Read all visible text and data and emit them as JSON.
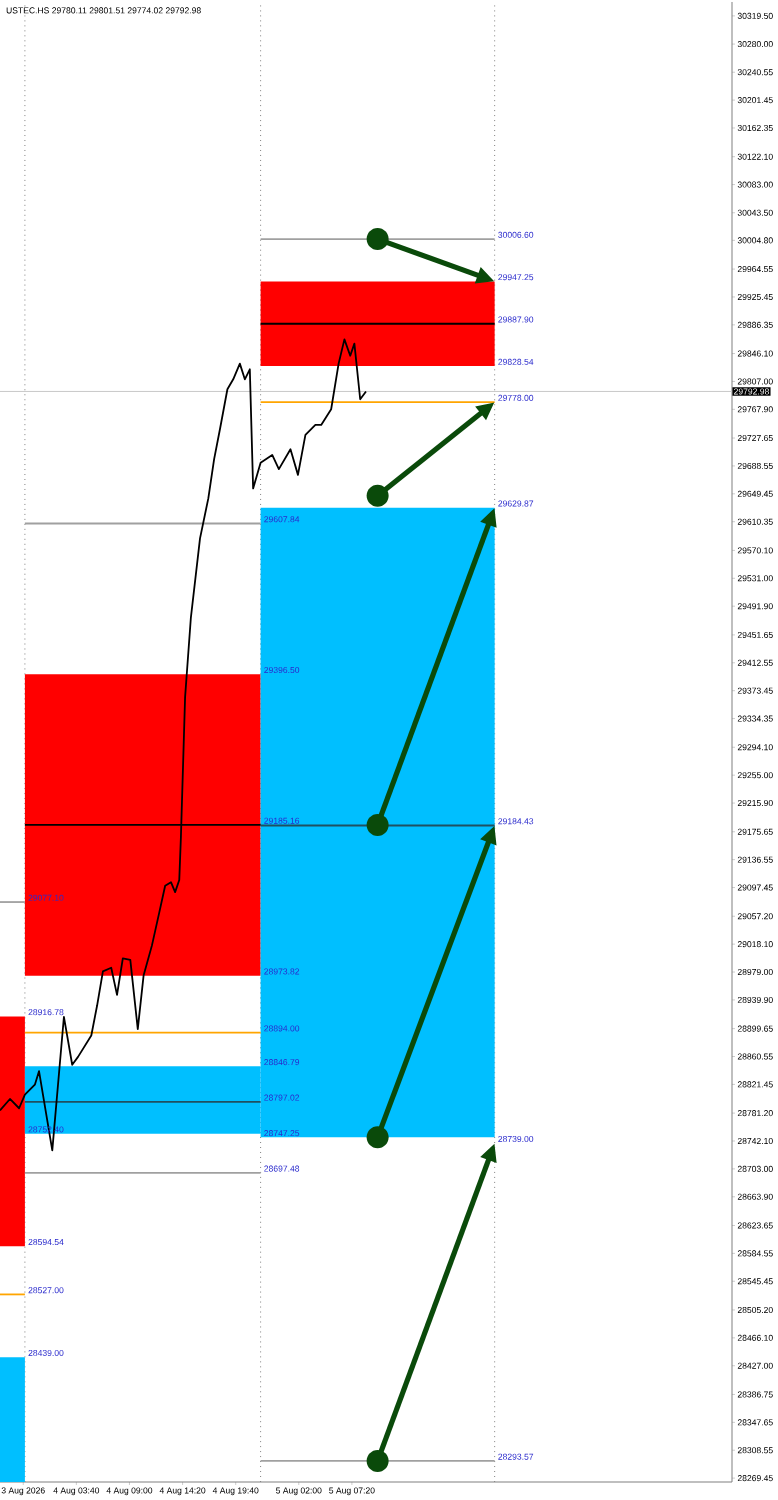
{
  "chart_data": {
    "type": "line",
    "title": "USTEC.HS  29780.11 29801.51 29774.02 29792.98",
    "xlim": [
      "2026-08-03T20:00",
      "2026-08-06T21:30"
    ],
    "ylim": [
      28264,
      30339
    ],
    "xticks": [
      {
        "value": "2026-08-03T22:20",
        "label": "3 Aug 2026"
      },
      {
        "value": "2026-08-04T03:40",
        "label": "4 Aug 03:40"
      },
      {
        "value": "2026-08-04T09:00",
        "label": "4 Aug 09:00"
      },
      {
        "value": "2026-08-04T14:20",
        "label": "4 Aug 14:20"
      },
      {
        "value": "2026-08-04T19:40",
        "label": "4 Aug 19:40"
      },
      {
        "value": "2026-08-05T02:00",
        "label": "5 Aug 02:00"
      },
      {
        "value": "2026-08-05T07:20",
        "label": "5 Aug 07:20"
      }
    ],
    "yticks": [
      {
        "value": 30319.5,
        "label": "30319.50"
      },
      {
        "value": 30280.0,
        "label": "30280.00"
      },
      {
        "value": 30240.55,
        "label": "30240.55"
      },
      {
        "value": 30201.45,
        "label": "30201.45"
      },
      {
        "value": 30162.35,
        "label": "30162.35"
      },
      {
        "value": 30122.1,
        "label": "30122.10"
      },
      {
        "value": 30083.0,
        "label": "30083.00"
      },
      {
        "value": 30043.5,
        "label": "30043.50"
      },
      {
        "value": 30004.8,
        "label": "30004.80"
      },
      {
        "value": 29964.55,
        "label": "29964.55"
      },
      {
        "value": 29925.45,
        "label": "29925.45"
      },
      {
        "value": 29886.35,
        "label": "29886.35"
      },
      {
        "value": 29846.1,
        "label": "29846.10"
      },
      {
        "value": 29807.0,
        "label": "29807.00"
      },
      {
        "value": 29767.9,
        "label": "29767.90"
      },
      {
        "value": 29727.65,
        "label": "29727.65"
      },
      {
        "value": 29688.55,
        "label": "29688.55"
      },
      {
        "value": 29649.45,
        "label": "29649.45"
      },
      {
        "value": 29610.35,
        "label": "29610.35"
      },
      {
        "value": 29570.1,
        "label": "29570.10"
      },
      {
        "value": 29531.0,
        "label": "29531.00"
      },
      {
        "value": 29491.9,
        "label": "29491.90"
      },
      {
        "value": 29451.65,
        "label": "29451.65"
      },
      {
        "value": 29412.55,
        "label": "29412.55"
      },
      {
        "value": 29373.45,
        "label": "29373.45"
      },
      {
        "value": 29334.35,
        "label": "29334.35"
      },
      {
        "value": 29294.1,
        "label": "29294.10"
      },
      {
        "value": 29255.0,
        "label": "29255.00"
      },
      {
        "value": 29215.9,
        "label": "29215.90"
      },
      {
        "value": 29175.65,
        "label": "29175.65"
      },
      {
        "value": 29136.55,
        "label": "29136.55"
      },
      {
        "value": 29097.45,
        "label": "29097.45"
      },
      {
        "value": 29057.2,
        "label": "29057.20"
      },
      {
        "value": 29018.1,
        "label": "29018.10"
      },
      {
        "value": 28979.0,
        "label": "28979.00"
      },
      {
        "value": 28939.9,
        "label": "28939.90"
      },
      {
        "value": 28899.65,
        "label": "28899.65"
      },
      {
        "value": 28860.55,
        "label": "28860.55"
      },
      {
        "value": 28821.45,
        "label": "28821.45"
      },
      {
        "value": 28781.2,
        "label": "28781.20"
      },
      {
        "value": 28742.1,
        "label": "28742.10"
      },
      {
        "value": 28703.0,
        "label": "28703.00"
      },
      {
        "value": 28663.9,
        "label": "28663.90"
      },
      {
        "value": 28623.65,
        "label": "28623.65"
      },
      {
        "value": 28584.55,
        "label": "28584.55"
      },
      {
        "value": 28545.45,
        "label": "28545.45"
      },
      {
        "value": 28505.2,
        "label": "28505.20"
      },
      {
        "value": 28466.1,
        "label": "28466.10"
      },
      {
        "value": 28427.0,
        "label": "28427.00"
      },
      {
        "value": 28386.75,
        "label": "28386.75"
      },
      {
        "value": 28347.65,
        "label": "28347.65"
      },
      {
        "value": 28308.55,
        "label": "28308.55"
      },
      {
        "value": 28269.45,
        "label": "28269.45"
      }
    ],
    "series": [
      {
        "type": "bar",
        "x": [
          "2026-08-03T21:15"
        ],
        "base": [
          28594.54
        ],
        "values": [
          322.24
        ],
        "color": "#ff0000"
      },
      {
        "type": "bar",
        "x": [
          "2026-08-03T21:15"
        ],
        "base": [
          28264
        ],
        "values": [
          175.0
        ],
        "color": "#00bfff"
      },
      {
        "type": "bar",
        "x": [
          "2026-08-04T10:05"
        ],
        "base": [
          28973.82
        ],
        "values": [
          422.68
        ],
        "color": "#ff0000"
      },
      {
        "type": "bar",
        "x": [
          "2026-08-04T10:05"
        ],
        "base": [
          28752.4
        ],
        "values": [
          94.39
        ],
        "color": "#00bfff"
      },
      {
        "type": "bar",
        "x": [
          "2026-08-05T10:10"
        ],
        "base": [
          29828.54
        ],
        "values": [
          118.71
        ],
        "color": "#ff0000"
      },
      {
        "type": "bar",
        "x": [
          "2026-08-05T10:10"
        ],
        "base": [
          28747.25
        ],
        "values": [
          882.62
        ],
        "color": "#00bfff"
      },
      {
        "type": "line",
        "color": "#a0a0a0",
        "x": [
          "2026-08-04T22:10",
          "2026-08-05T21:40"
        ],
        "values": [
          30006.6,
          30006.6
        ]
      },
      {
        "type": "line",
        "color": "#000000",
        "x": [
          "2026-08-04T22:10",
          "2026-08-05T21:40"
        ],
        "values": [
          29887.9,
          29887.9
        ]
      },
      {
        "type": "line",
        "color": "#ffa500",
        "x": [
          "2026-08-04T22:10",
          "2026-08-05T21:40"
        ],
        "values": [
          29778.0,
          29778.0
        ]
      },
      {
        "type": "line",
        "color": "#205060",
        "x": [
          "2026-08-04T22:10",
          "2026-08-05T21:40"
        ],
        "values": [
          29184.43,
          29184.43
        ]
      },
      {
        "type": "line",
        "color": "#a0a0a0",
        "x": [
          "2026-08-04T22:10",
          "2026-08-05T21:40"
        ],
        "values": [
          28293.57,
          28293.57
        ]
      },
      {
        "type": "line",
        "color": "#a0a0a0",
        "x": [
          "2026-08-03T22:30",
          "2026-08-04T22:10"
        ],
        "values": [
          29607.84,
          29607.84
        ]
      },
      {
        "type": "line",
        "color": "#000000",
        "x": [
          "2026-08-03T22:30",
          "2026-08-04T22:10"
        ],
        "values": [
          29185.16,
          29185.16
        ]
      },
      {
        "type": "line",
        "color": "#ffa500",
        "x": [
          "2026-08-03T22:30",
          "2026-08-04T22:10"
        ],
        "values": [
          28894.0,
          28894.0
        ]
      },
      {
        "type": "line",
        "color": "#205060",
        "x": [
          "2026-08-03T22:30",
          "2026-08-04T22:10"
        ],
        "values": [
          28797.02,
          28797.02
        ]
      },
      {
        "type": "line",
        "color": "#a0a0a0",
        "x": [
          "2026-08-03T22:30",
          "2026-08-04T22:10"
        ],
        "values": [
          28697.48,
          28697.48
        ]
      },
      {
        "type": "line",
        "color": "#a0a0a0",
        "x": [
          "2026-08-03T20:00",
          "2026-08-03T22:30"
        ],
        "values": [
          29077.1,
          29077.1
        ]
      },
      {
        "type": "line",
        "color": "#ffa500",
        "x": [
          "2026-08-03T20:00",
          "2026-08-03T22:30"
        ],
        "values": [
          28527.0,
          28527.0
        ]
      },
      {
        "color": "#000000",
        "x": [
          "2026-08-03T20:00",
          "2026-08-03T21:00",
          "2026-08-03T21:55",
          "2026-08-03T22:30",
          "2026-08-03T23:30",
          "2026-08-03T23:55",
          "2026-08-04T01:15",
          "2026-08-04T02:25",
          "2026-08-04T03:15",
          "2026-08-04T03:50",
          "2026-08-04T05:10",
          "2026-08-04T05:45",
          "2026-08-04T06:20",
          "2026-08-04T07:10",
          "2026-08-04T07:45",
          "2026-08-04T08:20",
          "2026-08-04T09:05",
          "2026-08-04T09:50",
          "2026-08-04T10:25",
          "2026-08-04T11:15",
          "2026-08-04T12:00",
          "2026-08-04T12:35",
          "2026-08-04T13:10",
          "2026-08-04T13:35",
          "2026-08-04T14:00",
          "2026-08-04T14:10",
          "2026-08-04T14:35",
          "2026-08-04T15:10",
          "2026-08-04T16:05",
          "2026-08-04T16:55",
          "2026-08-04T17:30",
          "2026-08-04T18:05",
          "2026-08-04T18:50",
          "2026-08-04T19:25",
          "2026-08-04T20:05",
          "2026-08-04T20:35",
          "2026-08-04T21:05",
          "2026-08-04T21:25",
          "2026-08-04T22:10",
          "2026-08-04T23:20",
          "2026-08-05T00:00",
          "2026-08-05T01:10",
          "2026-08-05T01:55",
          "2026-08-05T02:40",
          "2026-08-05T03:40",
          "2026-08-05T04:15",
          "2026-08-05T05:15",
          "2026-08-05T06:00",
          "2026-08-05T06:35",
          "2026-08-05T07:10",
          "2026-08-05T07:35",
          "2026-08-05T08:10",
          "2026-08-05T08:45"
        ],
        "values": [
          28785,
          28801,
          28788,
          28807,
          28821,
          28840,
          28729,
          28916,
          28849,
          28860,
          28890,
          28932,
          28980,
          28985,
          28947,
          28998,
          28996,
          28899,
          28974,
          29016,
          29063,
          29100,
          29105,
          29091,
          29108,
          29169,
          29364,
          29476,
          29587,
          29643,
          29698,
          29740,
          29796,
          29810,
          29832,
          29810,
          29824,
          29657,
          29693,
          29704,
          29684,
          29712,
          29676,
          29732,
          29746,
          29746,
          29768,
          29832,
          29866,
          29843,
          29860,
          29782,
          29793
        ]
      }
    ],
    "ref_lines": [
      {
        "axis": "x",
        "value": "2026-08-03T22:30",
        "line_style": "dotted",
        "color": "#808080"
      },
      {
        "axis": "x",
        "value": "2026-08-04T22:10",
        "line_style": "dotted",
        "color": "#808080"
      },
      {
        "axis": "x",
        "value": "2026-08-05T21:40",
        "line_style": "dotted",
        "color": "#808080"
      },
      {
        "axis": "y",
        "value": 29792.98,
        "label": "29792.98",
        "color": "#c8c8c8"
      }
    ],
    "annotations": [
      {
        "text": "30006.60",
        "x": "2026-08-05T21:40",
        "y": 30006.6
      },
      {
        "text": "29947.25",
        "x": "2026-08-05T21:40",
        "y": 29947.25
      },
      {
        "text": "29887.90",
        "x": "2026-08-05T21:40",
        "y": 29887.9
      },
      {
        "text": "29828.54",
        "x": "2026-08-05T21:40",
        "y": 29828.54
      },
      {
        "text": "29778.00",
        "x": "2026-08-05T21:40",
        "y": 29778.0
      },
      {
        "text": "29629.87",
        "x": "2026-08-05T21:40",
        "y": 29629.87
      },
      {
        "text": "29184.43",
        "x": "2026-08-05T21:40",
        "y": 29184.43
      },
      {
        "text": "28739.00",
        "x": "2026-08-05T21:40",
        "y": 28739.0
      },
      {
        "text": "28293.57",
        "x": "2026-08-05T21:40",
        "y": 28293.57
      },
      {
        "text": "29607.84",
        "x": "2026-08-04T22:10",
        "y": 29607.84
      },
      {
        "text": "29396.50",
        "x": "2026-08-04T22:10",
        "y": 29396.5
      },
      {
        "text": "29185.16",
        "x": "2026-08-04T22:10",
        "y": 29185.16
      },
      {
        "text": "28973.82",
        "x": "2026-08-04T22:10",
        "y": 28973.82
      },
      {
        "text": "28894.00",
        "x": "2026-08-04T22:10",
        "y": 28894.0
      },
      {
        "text": "28846.79",
        "x": "2026-08-04T22:10",
        "y": 28846.79
      },
      {
        "text": "28797.02",
        "x": "2026-08-04T22:10",
        "y": 28797.02
      },
      {
        "text": "28747.25",
        "x": "2026-08-04T22:10",
        "y": 28747.25
      },
      {
        "text": "28697.48",
        "x": "2026-08-04T22:10",
        "y": 28697.48
      },
      {
        "text": "29077.10",
        "x": "2026-08-03T22:30",
        "y": 29077.1
      },
      {
        "text": "28916.78",
        "x": "2026-08-03T22:30",
        "y": 28916.78
      },
      {
        "text": "28752.40",
        "x": "2026-08-03T22:30",
        "y": 28752.4
      },
      {
        "text": "28594.54",
        "x": "2026-08-03T22:30",
        "y": 28594.54
      },
      {
        "text": "28527.00",
        "x": "2026-08-03T22:30",
        "y": 28527.0
      },
      {
        "text": "28439.00",
        "x": "2026-08-03T22:30",
        "y": 28439.0
      }
    ]
  }
}
